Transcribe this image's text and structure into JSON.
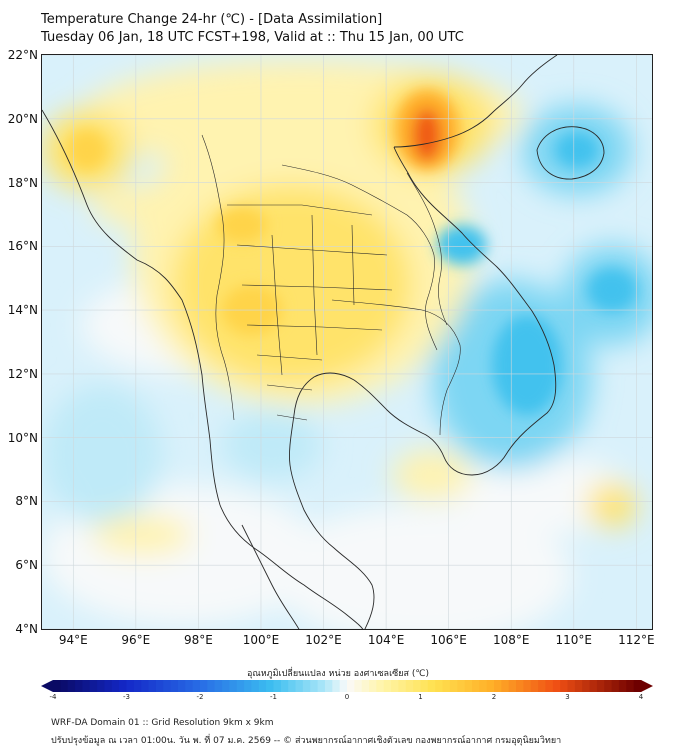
{
  "title": {
    "line1": "Temperature Change 24-hr (℃) - [Data Assimilation]",
    "line2": "Tuesday 06 Jan, 18 UTC FCST+198, Valid at :: Thu 15 Jan, 00 UTC"
  },
  "map": {
    "lat_range": [
      4,
      22
    ],
    "lon_range": [
      93,
      112.5
    ],
    "lat_labels": [
      "22°N",
      "20°N",
      "18°N",
      "16°N",
      "14°N",
      "12°N",
      "10°N",
      "8°N",
      "6°N",
      "4°N"
    ],
    "lon_labels": [
      "94°E",
      "96°E",
      "98°E",
      "100°E",
      "102°E",
      "104°E",
      "106°E",
      "108°E",
      "110°E",
      "112°E"
    ],
    "colors": {
      "background": "#d9f1fb",
      "neutral": "#f7f9fa",
      "light_yellow": "#fff3b0",
      "yellow": "#ffe36a",
      "gold": "#ffd44a",
      "orange": "#ffae2a",
      "red_orange": "#f05a14",
      "light_blue": "#bfeaf8",
      "blue": "#7dd6f3",
      "deep_blue": "#43c2ee",
      "coastline": "#2a2a2a",
      "grid": "#cfd8dc"
    }
  },
  "colorbar": {
    "title": "อุณหภูมิเปลี่ยนแปลง หน่วย องศาเซลเซียส (℃)",
    "ticks": [
      "-4",
      "-3",
      "-2",
      "-1",
      "0",
      "1",
      "2",
      "3",
      "4"
    ],
    "range": [
      -4,
      4
    ]
  },
  "footer": {
    "line1": "WRF-DA Domain 01 :: Grid Resolution 9km x 9km",
    "line2": "ปรับปรุงข้อมูล ณ เวลา 01:00น. วัน พ. ที่ 07 ม.ค. 2569 -- © ส่วนพยากรณ์อากาศเชิงตัวเลข กองพยากรณ์อากาศ กรมอุตุนิยมวิทยา"
  }
}
